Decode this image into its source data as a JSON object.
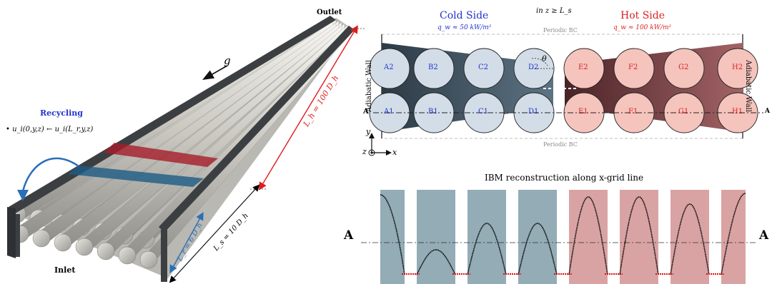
{
  "left_panel": {
    "outlet": "Outlet",
    "inlet": "Inlet",
    "gravity": "g",
    "recycling_title": "Recycling",
    "recycling_formula": "u_i(0,y,z) ← u_i(L_r,y,z)",
    "lh_label": "L_h = 100 D_h",
    "ls_label": "L_s = 10 D_h",
    "lr_label": "L_r = 6 D_h"
  },
  "cross_section": {
    "condition": "in z ≥ L_s",
    "cold_title": "Cold Side",
    "cold_flux": "q_w ≈ 50 kW/m²",
    "hot_title": "Hot Side",
    "hot_flux": "q_w ≈ 100 kW/m²",
    "periodic_top": "Periodic BC",
    "periodic_bottom": "Periodic BC",
    "adiabatic_left": "Adiabatic Wall",
    "adiabatic_right": "Adiabatic Wall",
    "theta": "θ",
    "cut_label_left": "A",
    "cut_label_right": "A",
    "axis_y": "y",
    "axis_z": "z",
    "axis_x": "x",
    "top_row": [
      "A2",
      "B2",
      "C2",
      "D2",
      "E2",
      "F2",
      "G2",
      "H2"
    ],
    "bottom_row": [
      "A1",
      "B1",
      "C1",
      "D1",
      "E1",
      "F1",
      "G1",
      "H1"
    ],
    "colors": {
      "cold": "#2233cc",
      "hot": "#dd2222",
      "cold_fill": "#d3dde8",
      "hot_fill": "#f4c4bd"
    }
  },
  "ibm_plot": {
    "title": "IBM reconstruction along x-grid line",
    "cut_label_left": "A",
    "cut_label_right": "A",
    "colors": {
      "cold_band": "#93acb6",
      "hot_band": "#d9a3a3",
      "curve": "#000000",
      "wall_points": "#dd1111"
    }
  }
}
